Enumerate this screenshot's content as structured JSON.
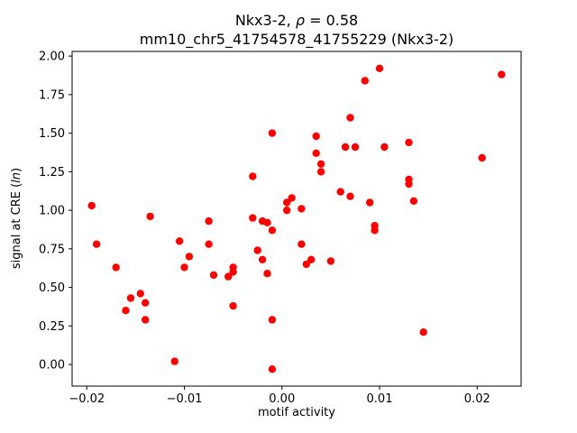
{
  "chart_data": {
    "type": "scatter",
    "title_parts": [
      "Nkx3-2, ",
      "ρ",
      " = 0.58"
    ],
    "subtitle": "mm10_chr5_41754578_41755229 (Nkx3-2)",
    "xlabel": "motif activity",
    "ylabel_parts": [
      "signal at CRE (",
      "ln",
      ")"
    ],
    "marker_color": "#ff0000",
    "marker_radius": 4.2,
    "grid": false,
    "legend": "none",
    "xlim": [
      -0.0215,
      0.0245
    ],
    "ylim": [
      -0.14,
      2.03
    ],
    "xticks": [
      {
        "v": -0.02,
        "label": "−0.02"
      },
      {
        "v": -0.01,
        "label": "−0.01"
      },
      {
        "v": 0.0,
        "label": "0.00"
      },
      {
        "v": 0.01,
        "label": "0.01"
      },
      {
        "v": 0.02,
        "label": "0.02"
      }
    ],
    "yticks": [
      {
        "v": 0.0,
        "label": "0.00"
      },
      {
        "v": 0.25,
        "label": "0.25"
      },
      {
        "v": 0.5,
        "label": "0.50"
      },
      {
        "v": 0.75,
        "label": "0.75"
      },
      {
        "v": 1.0,
        "label": "1.00"
      },
      {
        "v": 1.25,
        "label": "1.25"
      },
      {
        "v": 1.5,
        "label": "1.50"
      },
      {
        "v": 1.75,
        "label": "1.75"
      },
      {
        "v": 2.0,
        "label": "2.00"
      }
    ],
    "points": [
      [
        -0.0195,
        1.03
      ],
      [
        -0.019,
        0.78
      ],
      [
        -0.017,
        0.63
      ],
      [
        -0.016,
        0.35
      ],
      [
        -0.0155,
        0.43
      ],
      [
        -0.0145,
        0.46
      ],
      [
        -0.014,
        0.4
      ],
      [
        -0.014,
        0.29
      ],
      [
        -0.0135,
        0.96
      ],
      [
        -0.011,
        0.02
      ],
      [
        -0.0105,
        0.8
      ],
      [
        -0.01,
        0.63
      ],
      [
        -0.0095,
        0.7
      ],
      [
        -0.0075,
        0.93
      ],
      [
        -0.0075,
        0.78
      ],
      [
        -0.007,
        0.58
      ],
      [
        -0.0055,
        0.57
      ],
      [
        -0.005,
        0.63
      ],
      [
        -0.005,
        0.6
      ],
      [
        -0.005,
        0.38
      ],
      [
        -0.003,
        1.22
      ],
      [
        -0.003,
        0.95
      ],
      [
        -0.0025,
        0.74
      ],
      [
        -0.002,
        0.93
      ],
      [
        -0.002,
        0.68
      ],
      [
        -0.0015,
        0.92
      ],
      [
        -0.0015,
        0.59
      ],
      [
        -0.001,
        1.5
      ],
      [
        -0.001,
        0.87
      ],
      [
        -0.001,
        0.29
      ],
      [
        -0.001,
        -0.03
      ],
      [
        0.0005,
        1.05
      ],
      [
        0.0005,
        1.0
      ],
      [
        0.001,
        1.08
      ],
      [
        0.002,
        1.01
      ],
      [
        0.002,
        0.78
      ],
      [
        0.0025,
        0.65
      ],
      [
        0.003,
        0.68
      ],
      [
        0.0035,
        1.48
      ],
      [
        0.0035,
        1.37
      ],
      [
        0.004,
        1.3
      ],
      [
        0.004,
        1.25
      ],
      [
        0.005,
        0.67
      ],
      [
        0.006,
        1.12
      ],
      [
        0.0065,
        1.41
      ],
      [
        0.007,
        1.6
      ],
      [
        0.007,
        1.09
      ],
      [
        0.0075,
        1.41
      ],
      [
        0.0085,
        1.84
      ],
      [
        0.009,
        1.05
      ],
      [
        0.0095,
        0.87
      ],
      [
        0.0095,
        0.9
      ],
      [
        0.01,
        1.92
      ],
      [
        0.0105,
        1.41
      ],
      [
        0.013,
        1.44
      ],
      [
        0.013,
        1.2
      ],
      [
        0.013,
        1.17
      ],
      [
        0.0135,
        1.06
      ],
      [
        0.0145,
        0.21
      ],
      [
        0.0205,
        1.34
      ],
      [
        0.0225,
        1.88
      ]
    ]
  }
}
